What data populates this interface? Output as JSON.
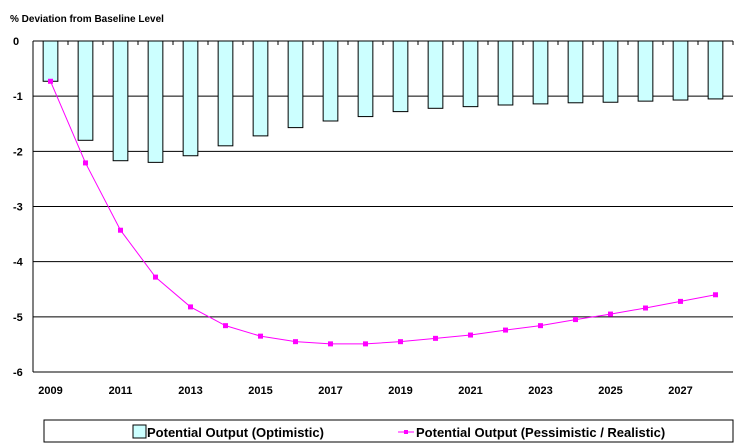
{
  "chart_data": {
    "type": "bar+line",
    "title": "",
    "ylabel": "% Deviation from Baseline Level",
    "xlabel": "",
    "ylim": [
      -6,
      0
    ],
    "yticks": [
      0,
      -1,
      -2,
      -3,
      -4,
      -5,
      -6
    ],
    "x": [
      2009,
      2010,
      2011,
      2012,
      2013,
      2014,
      2015,
      2016,
      2017,
      2018,
      2019,
      2020,
      2021,
      2022,
      2023,
      2024,
      2025,
      2026,
      2027,
      2028
    ],
    "xtick_labels": [
      "2009",
      "2011",
      "2013",
      "2015",
      "2017",
      "2019",
      "2021",
      "2023",
      "2025",
      "2027"
    ],
    "grid": "horizontal",
    "legend_position": "bottom",
    "series": [
      {
        "name": "Potential Output (Optimistic)",
        "kind": "bar",
        "color": "#ccffff",
        "edge_color": "#000000",
        "values": [
          -0.73,
          -1.8,
          -2.17,
          -2.2,
          -2.08,
          -1.9,
          -1.72,
          -1.57,
          -1.45,
          -1.37,
          -1.28,
          -1.22,
          -1.19,
          -1.16,
          -1.14,
          -1.12,
          -1.11,
          -1.09,
          -1.07,
          -1.05
        ]
      },
      {
        "name": "Potential Output (Pessimistic / Realistic)",
        "kind": "line",
        "color": "#ff00ff",
        "marker": "square",
        "values": [
          -0.73,
          -2.21,
          -3.43,
          -4.28,
          -4.82,
          -5.16,
          -5.35,
          -5.45,
          -5.49,
          -5.49,
          -5.45,
          -5.39,
          -5.33,
          -5.24,
          -5.16,
          -5.05,
          -4.95,
          -4.84,
          -4.72,
          -4.6
        ]
      }
    ]
  }
}
